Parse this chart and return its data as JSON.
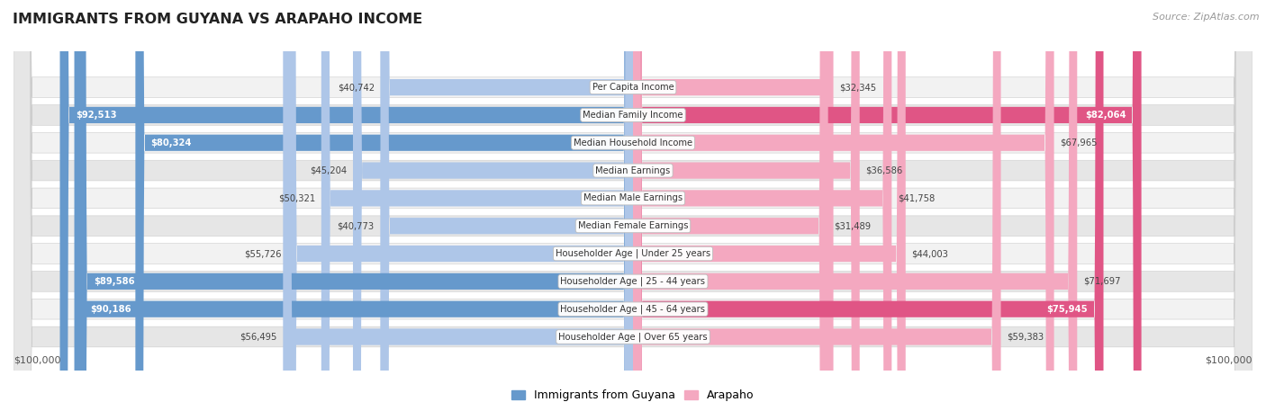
{
  "title": "IMMIGRANTS FROM GUYANA VS ARAPAHO INCOME",
  "source": "Source: ZipAtlas.com",
  "categories": [
    "Per Capita Income",
    "Median Family Income",
    "Median Household Income",
    "Median Earnings",
    "Median Male Earnings",
    "Median Female Earnings",
    "Householder Age | Under 25 years",
    "Householder Age | 25 - 44 years",
    "Householder Age | 45 - 64 years",
    "Householder Age | Over 65 years"
  ],
  "left_values": [
    40742,
    92513,
    80324,
    45204,
    50321,
    40773,
    55726,
    89586,
    90186,
    56495
  ],
  "right_values": [
    32345,
    82064,
    67965,
    36586,
    41758,
    31489,
    44003,
    71697,
    75945,
    59383
  ],
  "left_labels": [
    "$40,742",
    "$92,513",
    "$80,324",
    "$45,204",
    "$50,321",
    "$40,773",
    "$55,726",
    "$89,586",
    "$90,186",
    "$56,495"
  ],
  "right_labels": [
    "$32,345",
    "$82,064",
    "$67,965",
    "$36,586",
    "$41,758",
    "$31,489",
    "$44,003",
    "$71,697",
    "$75,945",
    "$59,383"
  ],
  "max_value": 100000,
  "left_color_low": "#aec6e8",
  "left_color_high": "#6699cc",
  "right_color_low": "#f4a8c0",
  "right_color_high": "#e05585",
  "threshold": 75000,
  "background_color": "#ffffff",
  "row_bg_light": "#f2f2f2",
  "row_bg_dark": "#e6e6e6",
  "legend_left": "Immigrants from Guyana",
  "legend_right": "Arapaho",
  "left_legend_color": "#6699cc",
  "right_legend_color": "#f4a8c0",
  "xlabel_left": "$100,000",
  "xlabel_right": "$100,000"
}
